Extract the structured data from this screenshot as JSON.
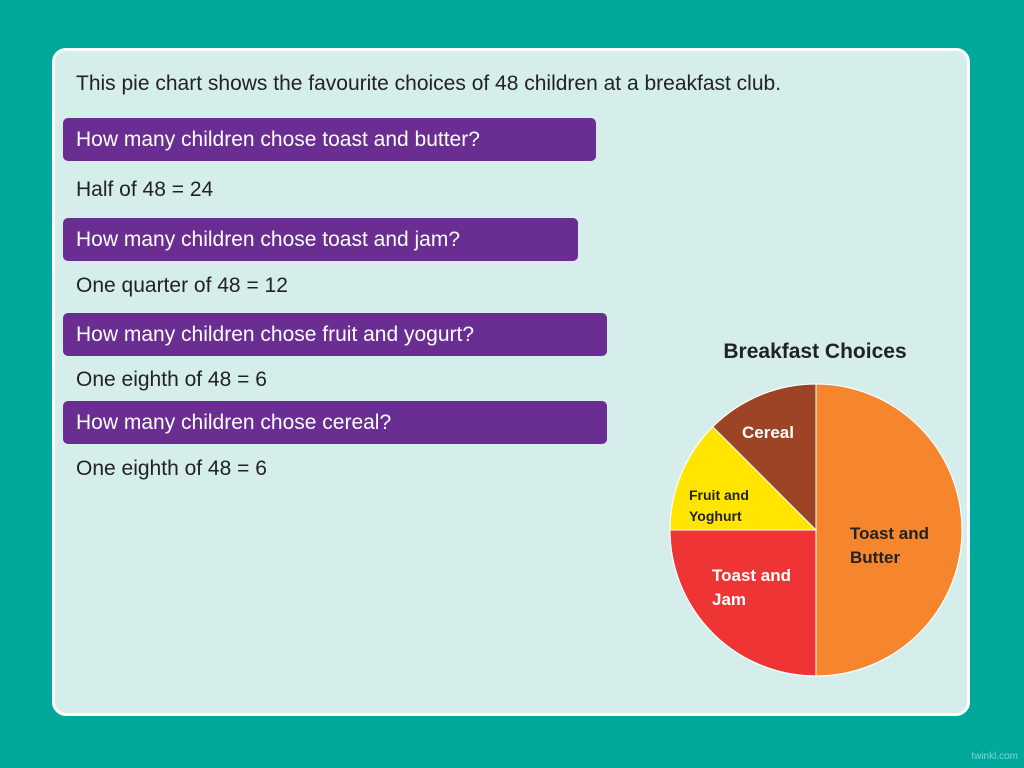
{
  "intro": "This pie chart shows the favourite choices of 48 children at a breakfast club.",
  "qa": [
    {
      "question": "How many children chose toast and butter?",
      "answer": "Half of 48 = 24"
    },
    {
      "question": "How many children chose toast and jam?",
      "answer": "One quarter of 48 = 12"
    },
    {
      "question": "How many children chose fruit and yogurt?",
      "answer": "One eighth of 48 = 6"
    },
    {
      "question": "How many children chose cereal?",
      "answer": "One eighth of 48 = 6"
    }
  ],
  "chart_data": {
    "type": "pie",
    "title": "Breakfast Choices",
    "slices": [
      {
        "label": "Toast and Butter",
        "lines": [
          "Toast and",
          "Butter"
        ],
        "value": 24,
        "color": "#f5862e"
      },
      {
        "label": "Toast and Jam",
        "lines": [
          "Toast and",
          "Jam"
        ],
        "value": 12,
        "color": "#ee3434"
      },
      {
        "label": "Fruit and Yoghurt",
        "lines": [
          "Fruit and",
          "Yoghurt"
        ],
        "value": 6,
        "color": "#ffe500"
      },
      {
        "label": "Cereal",
        "lines": [
          "Cereal"
        ],
        "value": 6,
        "color": "#9e4426"
      }
    ]
  },
  "brand": "twinkl.com",
  "colors": {
    "background": "#00a89c",
    "card": "#d5eeec",
    "question_box": "#6a2d91"
  }
}
